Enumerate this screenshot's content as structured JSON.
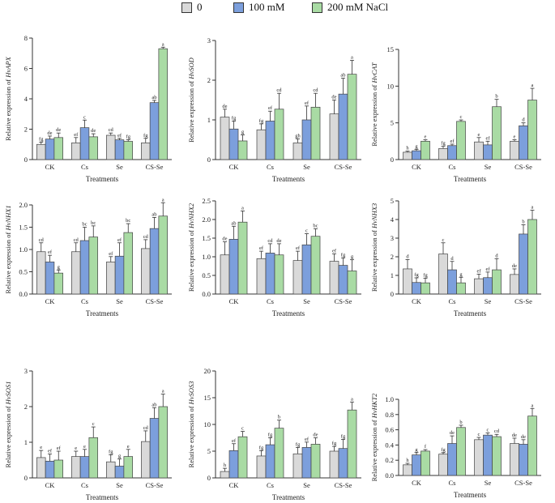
{
  "legend": {
    "items": [
      {
        "label": "0",
        "color": "#d9d9d9"
      },
      {
        "label": "100 mM",
        "color": "#7c9fdc"
      },
      {
        "label": "200 mM NaCl",
        "color": "#a9dba4"
      }
    ]
  },
  "chart_data": [
    {
      "type": "bar",
      "title": "",
      "ylabel_prefix": "Relative expression of ",
      "gene": "HvAPX",
      "xlabel": "Treatments",
      "categories": [
        "CK",
        "Cs",
        "Se",
        "CS-Se"
      ],
      "ylim": [
        0,
        8
      ],
      "yticks": [
        0,
        2,
        4,
        6,
        8
      ],
      "series": [
        {
          "name": "0",
          "values": [
            1.0,
            1.1,
            1.6,
            1.1
          ],
          "errors": [
            0.15,
            0.35,
            0.15,
            0.3
          ],
          "letters": [
            "fg",
            "ef",
            "cd",
            "fg"
          ]
        },
        {
          "name": "100 mM",
          "values": [
            1.35,
            2.1,
            1.3,
            3.75
          ],
          "errors": [
            0.2,
            0.5,
            0.1,
            0.15
          ],
          "letters": [
            "de",
            "c",
            "ef",
            "ab"
          ]
        },
        {
          "name": "200 mM NaCl",
          "values": [
            1.45,
            1.5,
            1.2,
            7.3
          ],
          "errors": [
            0.3,
            0.2,
            0.1,
            0.1
          ],
          "letters": [
            "de",
            "de",
            "fg",
            "a"
          ]
        }
      ]
    },
    {
      "type": "bar",
      "title": "",
      "ylabel_prefix": "Relative expression of ",
      "gene": "HvSOD",
      "xlabel": "Treatments",
      "categories": [
        "CK",
        "Cs",
        "Se",
        "CS-Se"
      ],
      "ylim": [
        0,
        3
      ],
      "yticks": [
        0,
        1,
        2,
        3
      ],
      "series": [
        {
          "name": "0",
          "values": [
            1.07,
            0.75,
            0.42,
            1.15
          ],
          "errors": [
            0.2,
            0.15,
            0.1,
            0.35
          ],
          "letters": [
            "de",
            "fg",
            "gh",
            "de"
          ]
        },
        {
          "name": "100 mM",
          "values": [
            0.77,
            0.97,
            1.0,
            1.65
          ],
          "errors": [
            0.2,
            0.25,
            0.35,
            0.4
          ],
          "letters": [
            "fg",
            "ef",
            "ef",
            "ab"
          ]
        },
        {
          "name": "200 mM NaCl",
          "values": [
            0.47,
            1.27,
            1.32,
            2.15
          ],
          "errors": [
            0.15,
            0.4,
            0.35,
            0.35
          ],
          "letters": [
            "g",
            "cd",
            "cd",
            "a"
          ]
        }
      ]
    },
    {
      "type": "bar",
      "title": "",
      "ylabel_prefix": "Relative expression of ",
      "gene": "HvCAT",
      "xlabel": "Treatments",
      "categories": [
        "CK",
        "Cs",
        "Se",
        "CS-Se"
      ],
      "ylim": [
        0,
        15
      ],
      "yticks": [
        0,
        5,
        10,
        15
      ],
      "series": [
        {
          "name": "0",
          "values": [
            1.0,
            1.5,
            2.4,
            2.5
          ],
          "errors": [
            0.15,
            0.3,
            0.6,
            0.2
          ],
          "letters": [
            "h",
            "fg",
            "e",
            "e"
          ]
        },
        {
          "name": "100 mM",
          "values": [
            1.2,
            1.9,
            2.0,
            4.6
          ],
          "errors": [
            0.2,
            0.2,
            0.5,
            0.4
          ],
          "letters": [
            "g",
            "ef",
            "ef",
            "d"
          ]
        },
        {
          "name": "200 mM NaCl",
          "values": [
            2.5,
            5.2,
            7.2,
            8.1
          ],
          "errors": [
            0.2,
            0.2,
            1.0,
            1.6
          ],
          "letters": [
            "e",
            "c",
            "b",
            "a"
          ]
        }
      ]
    },
    {
      "type": "bar",
      "title": "",
      "ylabel_prefix": "Relative expression of ",
      "gene": "HvNHX1",
      "xlabel": "Treatments",
      "categories": [
        "CK",
        "Cs",
        "Se",
        "CS-Se"
      ],
      "ylim": [
        0,
        2
      ],
      "yticks": [
        0,
        0.5,
        1,
        1.5,
        2
      ],
      "series": [
        {
          "name": "0",
          "values": [
            0.95,
            0.95,
            0.72,
            1.02
          ],
          "errors": [
            0.2,
            0.2,
            0.12,
            0.2
          ],
          "letters": [
            "cd",
            "cd",
            "ef",
            "cd"
          ]
        },
        {
          "name": "100 mM",
          "values": [
            0.72,
            1.2,
            0.85,
            1.47
          ],
          "errors": [
            0.15,
            0.3,
            0.3,
            0.25
          ],
          "letters": [
            "ef",
            "bc",
            "ef",
            "ab"
          ]
        },
        {
          "name": "200 mM NaCl",
          "values": [
            0.47,
            1.28,
            1.38,
            1.75
          ],
          "errors": [
            0.07,
            0.25,
            0.2,
            0.3
          ],
          "letters": [
            "g",
            "bc",
            "bc",
            "a"
          ]
        }
      ]
    },
    {
      "type": "bar",
      "title": "",
      "ylabel_prefix": "Relative expression of ",
      "gene": "HvNHX2",
      "xlabel": "Treatments",
      "categories": [
        "CK",
        "Cs",
        "Se",
        "CS-Se"
      ],
      "ylim": [
        0,
        2.5
      ],
      "yticks": [
        0.0,
        0.5,
        1.0,
        1.5,
        2.0,
        2.5
      ],
      "series": [
        {
          "name": "0",
          "values": [
            1.05,
            0.95,
            0.9,
            0.88
          ],
          "errors": [
            0.35,
            0.2,
            0.25,
            0.2
          ],
          "letters": [
            "de",
            "ef",
            "ef",
            "ef"
          ]
        },
        {
          "name": "100 mM",
          "values": [
            1.47,
            1.1,
            1.32,
            0.77
          ],
          "errors": [
            0.35,
            0.25,
            0.3,
            0.2
          ],
          "letters": [
            "ab",
            "cd",
            "c",
            "fg"
          ]
        },
        {
          "name": "200 mM NaCl",
          "values": [
            1.93,
            1.05,
            1.55,
            0.62
          ],
          "errors": [
            0.3,
            0.3,
            0.2,
            0.3
          ],
          "letters": [
            "a",
            "de",
            "bc",
            "g"
          ]
        }
      ]
    },
    {
      "type": "bar",
      "title": "",
      "ylabel_prefix": "Relative expression of ",
      "gene": "HvNHX3",
      "xlabel": "Treatments",
      "categories": [
        "CK",
        "Cs",
        "Se",
        "CS-Se"
      ],
      "ylim": [
        0,
        5
      ],
      "yticks": [
        0,
        1,
        2,
        3,
        4,
        5
      ],
      "series": [
        {
          "name": "0",
          "values": [
            1.35,
            2.15,
            0.82,
            1.05
          ],
          "errors": [
            0.5,
            0.6,
            0.25,
            0.3
          ],
          "letters": [
            "d",
            "c",
            "ef",
            "de"
          ]
        },
        {
          "name": "100 mM",
          "values": [
            0.62,
            1.3,
            0.88,
            3.22
          ],
          "errors": [
            0.25,
            0.45,
            0.3,
            0.5
          ],
          "letters": [
            "fg",
            "d",
            "ef",
            "b"
          ]
        },
        {
          "name": "200 mM NaCl",
          "values": [
            0.6,
            0.6,
            1.3,
            4.0
          ],
          "errors": [
            0.25,
            0.3,
            0.6,
            0.5
          ],
          "letters": [
            "fg",
            "g",
            "d",
            "a"
          ]
        }
      ]
    },
    {
      "type": "bar",
      "title": "",
      "ylabel_prefix": "Relative expression of ",
      "gene": "HvSOS1",
      "xlabel": "Treatments",
      "categories": [
        "CK",
        "Cs",
        "Se",
        "CS-Se"
      ],
      "ylim": [
        0,
        3
      ],
      "yticks": [
        0,
        1,
        2,
        3
      ],
      "series": [
        {
          "name": "0",
          "values": [
            0.57,
            0.6,
            0.45,
            1.02
          ],
          "errors": [
            0.2,
            0.15,
            0.2,
            0.3
          ],
          "letters": [
            "e",
            "e",
            "fg",
            "cd"
          ]
        },
        {
          "name": "100 mM",
          "values": [
            0.47,
            0.6,
            0.33,
            1.67
          ],
          "errors": [
            0.2,
            0.2,
            0.2,
            0.3
          ],
          "letters": [
            "ef",
            "e",
            "g",
            "ab"
          ]
        },
        {
          "name": "200 mM NaCl",
          "values": [
            0.5,
            1.13,
            0.6,
            2.0
          ],
          "errors": [
            0.25,
            0.3,
            0.2,
            0.35
          ],
          "letters": [
            "ef",
            "c",
            "e",
            "a"
          ]
        }
      ]
    },
    {
      "type": "bar",
      "title": "",
      "ylabel_prefix": "Relative expression of ",
      "gene": "HvSOS3",
      "xlabel": "Treatments",
      "categories": [
        "CK",
        "Cs",
        "Se",
        "CS-Se"
      ],
      "ylim": [
        0,
        20
      ],
      "yticks": [
        0,
        5,
        10,
        15,
        20
      ],
      "series": [
        {
          "name": "0",
          "values": [
            1.2,
            4.1,
            4.5,
            5.0
          ],
          "errors": [
            0.6,
            1.0,
            1.2,
            0.9
          ],
          "letters": [
            "h",
            "fg",
            "fg",
            "fg"
          ]
        },
        {
          "name": "100 mM",
          "values": [
            5.1,
            6.2,
            5.7,
            5.5
          ],
          "errors": [
            1.3,
            1.3,
            1.0,
            1.7
          ],
          "letters": [
            "ef",
            "fg",
            "ef",
            "fg"
          ]
        },
        {
          "name": "200 mM NaCl",
          "values": [
            7.7,
            9.3,
            6.3,
            12.7
          ],
          "errors": [
            1.0,
            1.5,
            1.2,
            1.5
          ],
          "letters": [
            "c",
            "b",
            "de",
            "a"
          ]
        }
      ]
    },
    {
      "type": "bar",
      "title": "",
      "ylabel_prefix": "Relative expression of ",
      "gene": "HvHKT2",
      "xlabel": "Treatments",
      "categories": [
        "CK",
        "Cs",
        "Se",
        "CS-Se"
      ],
      "ylim": [
        0,
        1.0
      ],
      "yticks": [
        0.0,
        0.2,
        0.4,
        0.6,
        0.8,
        1.0
      ],
      "series": [
        {
          "name": "0",
          "values": [
            0.14,
            0.28,
            0.47,
            0.42
          ],
          "errors": [
            0.02,
            0.02,
            0.03,
            0.07
          ],
          "letters": [
            "h",
            "fg",
            "c",
            "de"
          ]
        },
        {
          "name": "100 mM",
          "values": [
            0.27,
            0.42,
            0.53,
            0.41
          ],
          "errors": [
            0.03,
            0.1,
            0.03,
            0.06
          ],
          "letters": [
            "g",
            "de",
            "c",
            "de"
          ]
        },
        {
          "name": "200 mM NaCl",
          "values": [
            0.32,
            0.63,
            0.51,
            0.78
          ],
          "errors": [
            0.02,
            0.03,
            0.03,
            0.1
          ],
          "letters": [
            "f",
            "b",
            "cd",
            "a"
          ]
        }
      ]
    }
  ]
}
